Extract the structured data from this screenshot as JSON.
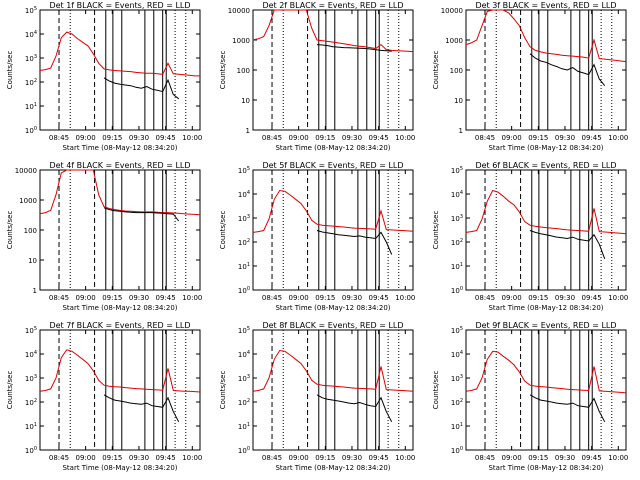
{
  "colors": {
    "background": "#ffffff",
    "events": "#000000",
    "lld": "#e00000",
    "axis": "#000000"
  },
  "chart_data": [
    {
      "type": "line",
      "title": "Det 1f BLACK = Events, RED = LLD",
      "ylabel": "Counts/sec",
      "xlabel": "Start Time (08-May-12 08:34:20)",
      "yscale": "log",
      "ylim": [
        1,
        100000
      ],
      "yticks": [
        "10^0",
        "10^1",
        "10^2",
        "10^3",
        "10^4",
        "10^5"
      ],
      "xticks": [
        "08:45",
        "09:00",
        "09:15",
        "09:30",
        "09:45",
        "10:00"
      ],
      "x_minutes": [
        0,
        3,
        6,
        9,
        12,
        15,
        18,
        21,
        24,
        27,
        30,
        33,
        36,
        39,
        42,
        45,
        48,
        51,
        54,
        57,
        60,
        63,
        66,
        69,
        72,
        75,
        78,
        81,
        84,
        87,
        90
      ],
      "series": [
        {
          "name": "LLD",
          "values": [
            300,
            330,
            380,
            1200,
            7000,
            12000,
            10000,
            6500,
            4500,
            3200,
            1500,
            600,
            350,
            320,
            300,
            290,
            280,
            270,
            250,
            240,
            230,
            230,
            220,
            210,
            600,
            220,
            210,
            200,
            190,
            180,
            180
          ]
        },
        {
          "name": "Events",
          "values": [
            null,
            null,
            null,
            null,
            null,
            null,
            null,
            null,
            null,
            null,
            null,
            null,
            150,
            110,
            90,
            80,
            75,
            70,
            60,
            55,
            65,
            50,
            45,
            40,
            120,
            30,
            20,
            null,
            null,
            null,
            null
          ]
        }
      ]
    },
    {
      "type": "line",
      "title": "Det 2f BLACK = Events, RED = LLD",
      "ylabel": "Counts/sec",
      "xlabel": "Start Time (08-May-12 08:34:20)",
      "yscale": "log",
      "ylim": [
        1,
        10000
      ],
      "yticks": [
        "1",
        "10",
        "100",
        "1000",
        "10000"
      ],
      "xticks": [
        "08:45",
        "09:00",
        "09:15",
        "09:30",
        "09:45",
        "10:00"
      ],
      "x_minutes": [
        0,
        3,
        6,
        9,
        12,
        15,
        18,
        21,
        24,
        27,
        30,
        33,
        36,
        39,
        42,
        45,
        48,
        51,
        54,
        57,
        60,
        63,
        66,
        69,
        72,
        75,
        78,
        81,
        84,
        87,
        90
      ],
      "series": [
        {
          "name": "LLD",
          "values": [
            1000,
            1100,
            1300,
            3000,
            10000,
            10000,
            10000,
            10000,
            10000,
            10000,
            10000,
            2500,
            1000,
            950,
            900,
            850,
            800,
            750,
            700,
            650,
            620,
            600,
            560,
            520,
            700,
            480,
            450,
            440,
            430,
            420,
            410
          ]
        },
        {
          "name": "Events",
          "values": [
            null,
            null,
            null,
            null,
            null,
            null,
            null,
            null,
            null,
            null,
            null,
            null,
            700,
            680,
            650,
            600,
            580,
            560,
            550,
            540,
            530,
            520,
            500,
            480,
            450,
            440,
            420,
            null,
            null,
            null,
            null
          ]
        }
      ]
    },
    {
      "type": "line",
      "title": "Det 3f BLACK = Events, RED = LLD",
      "ylabel": "Counts/sec",
      "xlabel": "Start Time (08-May-12 08:34:20)",
      "yscale": "log",
      "ylim": [
        1,
        10000
      ],
      "yticks": [
        "1",
        "10",
        "100",
        "1000",
        "10000"
      ],
      "xticks": [
        "08:45",
        "09:00",
        "09:15",
        "09:30",
        "09:45",
        "10:00"
      ],
      "x_minutes": [
        0,
        3,
        6,
        9,
        12,
        15,
        18,
        21,
        24,
        27,
        30,
        33,
        36,
        39,
        42,
        45,
        48,
        51,
        54,
        57,
        60,
        63,
        66,
        69,
        72,
        75,
        78,
        81,
        84,
        87,
        90
      ],
      "series": [
        {
          "name": "LLD",
          "values": [
            700,
            800,
            1000,
            3000,
            9000,
            10000,
            10000,
            10000,
            8000,
            5000,
            3000,
            1200,
            600,
            450,
            400,
            370,
            350,
            330,
            310,
            300,
            290,
            280,
            270,
            250,
            1000,
            240,
            230,
            220,
            210,
            200,
            190
          ]
        },
        {
          "name": "Events",
          "values": [
            null,
            null,
            null,
            null,
            null,
            null,
            null,
            null,
            null,
            null,
            null,
            null,
            350,
            250,
            200,
            180,
            150,
            130,
            110,
            100,
            120,
            90,
            80,
            70,
            150,
            50,
            30,
            null,
            null,
            null,
            null
          ]
        }
      ]
    },
    {
      "type": "line",
      "title": "Det 4f BLACK = Events, RED = LLD",
      "ylabel": "Counts/sec",
      "xlabel": "Start Time (08-May-12 08:34:20)",
      "yscale": "log",
      "ylim": [
        1,
        10000
      ],
      "yticks": [
        "1",
        "10",
        "100",
        "1000",
        "10000"
      ],
      "xticks": [
        "08:45",
        "09:00",
        "09:15",
        "09:30",
        "09:45",
        "10:00"
      ],
      "x_minutes": [
        0,
        3,
        6,
        9,
        12,
        15,
        18,
        21,
        24,
        27,
        30,
        33,
        36,
        39,
        42,
        45,
        48,
        51,
        54,
        57,
        60,
        63,
        66,
        69,
        72,
        75,
        78,
        81,
        84,
        87,
        90
      ],
      "series": [
        {
          "name": "LLD",
          "values": [
            350,
            380,
            450,
            1500,
            8000,
            10000,
            10000,
            10000,
            10000,
            10000,
            10000,
            1500,
            600,
            520,
            480,
            450,
            430,
            420,
            410,
            400,
            400,
            400,
            390,
            380,
            380,
            370,
            360,
            350,
            340,
            330,
            320
          ]
        },
        {
          "name": "Events",
          "values": [
            null,
            null,
            null,
            null,
            null,
            null,
            null,
            null,
            null,
            null,
            null,
            null,
            550,
            480,
            440,
            420,
            400,
            390,
            380,
            380,
            380,
            380,
            370,
            360,
            350,
            340,
            200,
            null,
            null,
            null,
            null
          ]
        }
      ]
    },
    {
      "type": "line",
      "title": "Det 5f BLACK = Events, RED = LLD",
      "ylabel": "Counts/sec",
      "xlabel": "Start Time (08-May-12 08:34:20)",
      "yscale": "log",
      "ylim": [
        1,
        100000
      ],
      "yticks": [
        "10^0",
        "10^1",
        "10^2",
        "10^3",
        "10^4",
        "10^5"
      ],
      "xticks": [
        "08:45",
        "09:00",
        "09:15",
        "09:30",
        "09:45",
        "10:00"
      ],
      "x_minutes": [
        0,
        3,
        6,
        9,
        12,
        15,
        18,
        21,
        24,
        27,
        30,
        33,
        36,
        39,
        42,
        45,
        48,
        51,
        54,
        57,
        60,
        63,
        66,
        69,
        72,
        75,
        78,
        81,
        84,
        87,
        90
      ],
      "series": [
        {
          "name": "LLD",
          "values": [
            250,
            270,
            300,
            900,
            6000,
            14000,
            13000,
            9000,
            6000,
            4000,
            2000,
            800,
            550,
            500,
            480,
            460,
            440,
            420,
            400,
            380,
            370,
            360,
            350,
            340,
            2000,
            330,
            320,
            310,
            300,
            290,
            280
          ]
        },
        {
          "name": "Events",
          "values": [
            null,
            null,
            null,
            null,
            null,
            null,
            null,
            null,
            null,
            null,
            null,
            null,
            300,
            260,
            240,
            220,
            200,
            190,
            180,
            170,
            180,
            160,
            150,
            140,
            250,
            100,
            30,
            null,
            null,
            null,
            null
          ]
        }
      ]
    },
    {
      "type": "line",
      "title": "Det 6f BLACK = Events, RED = LLD",
      "ylabel": "Counts/sec",
      "xlabel": "Start Time (08-May-12 08:34:20)",
      "yscale": "log",
      "ylim": [
        1,
        100000
      ],
      "yticks": [
        "10^0",
        "10^1",
        "10^2",
        "10^3",
        "10^4",
        "10^5"
      ],
      "xticks": [
        "08:45",
        "09:00",
        "09:15",
        "09:30",
        "09:45",
        "10:00"
      ],
      "x_minutes": [
        0,
        3,
        6,
        9,
        12,
        15,
        18,
        21,
        24,
        27,
        30,
        33,
        36,
        39,
        42,
        45,
        48,
        51,
        54,
        57,
        60,
        63,
        66,
        69,
        72,
        75,
        78,
        81,
        84,
        87,
        90
      ],
      "series": [
        {
          "name": "LLD",
          "values": [
            250,
            270,
            300,
            900,
            5000,
            14000,
            12000,
            8000,
            5000,
            3500,
            1800,
            700,
            500,
            450,
            420,
            400,
            380,
            360,
            340,
            320,
            310,
            300,
            290,
            280,
            2500,
            270,
            260,
            250,
            240,
            230,
            220
          ]
        },
        {
          "name": "Events",
          "values": [
            null,
            null,
            null,
            null,
            null,
            null,
            null,
            null,
            null,
            null,
            null,
            null,
            300,
            250,
            220,
            200,
            180,
            160,
            150,
            140,
            160,
            130,
            120,
            110,
            200,
            80,
            20,
            null,
            null,
            null,
            null
          ]
        }
      ]
    },
    {
      "type": "line",
      "title": "Det 7f BLACK = Events, RED = LLD",
      "ylabel": "Counts/sec",
      "xlabel": "Start Time (08-May-12 08:34:20)",
      "yscale": "log",
      "ylim": [
        1,
        100000
      ],
      "yticks": [
        "10^0",
        "10^1",
        "10^2",
        "10^3",
        "10^4",
        "10^5"
      ],
      "xticks": [
        "08:45",
        "09:00",
        "09:15",
        "09:30",
        "09:45",
        "10:00"
      ],
      "x_minutes": [
        0,
        3,
        6,
        9,
        12,
        15,
        18,
        21,
        24,
        27,
        30,
        33,
        36,
        39,
        42,
        45,
        48,
        51,
        54,
        57,
        60,
        63,
        66,
        69,
        72,
        75,
        78,
        81,
        84,
        87,
        90
      ],
      "series": [
        {
          "name": "LLD",
          "values": [
            280,
            300,
            350,
            1000,
            7000,
            15000,
            13000,
            9000,
            6000,
            4000,
            2000,
            800,
            500,
            450,
            430,
            420,
            400,
            380,
            360,
            350,
            340,
            330,
            320,
            310,
            2500,
            300,
            290,
            280,
            280,
            270,
            260
          ]
        },
        {
          "name": "Events",
          "values": [
            null,
            null,
            null,
            null,
            null,
            null,
            null,
            null,
            null,
            null,
            null,
            null,
            200,
            150,
            120,
            110,
            100,
            90,
            85,
            80,
            90,
            70,
            65,
            60,
            150,
            40,
            15,
            null,
            null,
            null,
            null
          ]
        }
      ]
    },
    {
      "type": "line",
      "title": "Det 8f BLACK = Events, RED = LLD",
      "ylabel": "Counts/sec",
      "xlabel": "Start Time (08-May-12 08:34:20)",
      "yscale": "log",
      "ylim": [
        1,
        100000
      ],
      "yticks": [
        "10^0",
        "10^1",
        "10^2",
        "10^3",
        "10^4",
        "10^5"
      ],
      "xticks": [
        "08:45",
        "09:00",
        "09:15",
        "09:30",
        "09:45",
        "10:00"
      ],
      "x_minutes": [
        0,
        3,
        6,
        9,
        12,
        15,
        18,
        21,
        24,
        27,
        30,
        33,
        36,
        39,
        42,
        45,
        48,
        51,
        54,
        57,
        60,
        63,
        66,
        69,
        72,
        75,
        78,
        81,
        84,
        87,
        90
      ],
      "series": [
        {
          "name": "LLD",
          "values": [
            280,
            300,
            350,
            1000,
            6000,
            14000,
            13000,
            9000,
            6000,
            4000,
            2000,
            800,
            550,
            500,
            480,
            460,
            440,
            420,
            400,
            380,
            370,
            360,
            350,
            340,
            3000,
            330,
            320,
            310,
            300,
            290,
            280
          ]
        },
        {
          "name": "Events",
          "values": [
            null,
            null,
            null,
            null,
            null,
            null,
            null,
            null,
            null,
            null,
            null,
            null,
            200,
            150,
            130,
            120,
            110,
            100,
            90,
            85,
            95,
            80,
            70,
            65,
            150,
            40,
            15,
            null,
            null,
            null,
            null
          ]
        }
      ]
    },
    {
      "type": "line",
      "title": "Det 9f BLACK = Events, RED = LLD",
      "ylabel": "Counts/sec",
      "xlabel": "Start Time (08-May-12 08:34:20)",
      "yscale": "log",
      "ylim": [
        1,
        100000
      ],
      "yticks": [
        "10^0",
        "10^1",
        "10^2",
        "10^3",
        "10^4",
        "10^5"
      ],
      "xticks": [
        "08:45",
        "09:00",
        "09:15",
        "09:30",
        "09:45",
        "10:00"
      ],
      "x_minutes": [
        0,
        3,
        6,
        9,
        12,
        15,
        18,
        21,
        24,
        27,
        30,
        33,
        36,
        39,
        42,
        45,
        48,
        51,
        54,
        57,
        60,
        63,
        66,
        69,
        72,
        75,
        78,
        81,
        84,
        87,
        90
      ],
      "series": [
        {
          "name": "LLD",
          "values": [
            280,
            300,
            350,
            1000,
            6000,
            13000,
            12000,
            8000,
            5500,
            3500,
            1800,
            750,
            500,
            460,
            440,
            420,
            400,
            380,
            360,
            340,
            330,
            320,
            310,
            300,
            3000,
            290,
            280,
            270,
            260,
            250,
            240
          ]
        },
        {
          "name": "Events",
          "values": [
            null,
            null,
            null,
            null,
            null,
            null,
            null,
            null,
            null,
            null,
            null,
            null,
            200,
            150,
            120,
            110,
            100,
            90,
            85,
            80,
            90,
            70,
            65,
            60,
            140,
            40,
            15,
            null,
            null,
            null,
            null
          ]
        }
      ]
    }
  ],
  "markers": {
    "dashed_minutes": [
      10.7,
      30.7
    ],
    "solid_minutes": [
      37,
      41,
      46,
      59,
      64,
      69,
      71
    ],
    "dotted_minutes": [
      17,
      76,
      82
    ]
  }
}
